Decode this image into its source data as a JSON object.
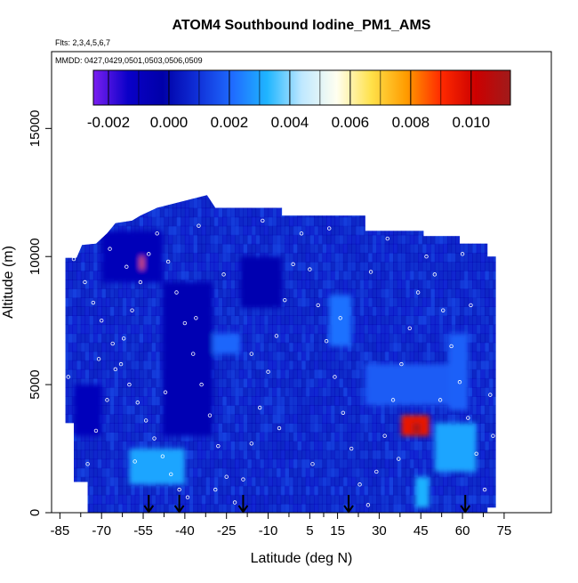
{
  "chart_data": {
    "type": "heatmap",
    "title": "ATOM4 Southbound Iodine_PM1_AMS",
    "flights_note": "Flts: 2,3,4,5,6,7",
    "dates_note": "MMDD: 0427,0429,0501,0503,0506,0509",
    "xlabel": "Latitude (deg N)",
    "ylabel": "Altitude (m)",
    "xlim": [
      -88,
      92
    ],
    "ylim": [
      0,
      18000
    ],
    "x_ticks": [
      -85,
      -70,
      -55,
      -40,
      -25,
      -10,
      5,
      15,
      30,
      45,
      60,
      75
    ],
    "y_ticks": [
      0,
      5000,
      10000,
      15000
    ],
    "colorbar": {
      "vmin": -0.0025,
      "vmax": 0.0113,
      "ticks": [
        -0.002,
        0.0,
        0.002,
        0.004,
        0.006,
        0.008,
        0.01
      ],
      "tick_labels": [
        "-0.002",
        "0.000",
        "0.002",
        "0.004",
        "0.006",
        "0.008",
        "0.010"
      ],
      "colors": [
        "#7a1ff0",
        "#0a00c8",
        "#0000a8",
        "#1030d8",
        "#1f6bff",
        "#1fb5ff",
        "#bfe8ff",
        "#fffff0",
        "#ffe14a",
        "#ff9c00",
        "#ff2a00",
        "#cc0000",
        "#a01b1b"
      ]
    },
    "background_color": "#1d55e6",
    "coverage_envelope": {
      "lat": [
        -83,
        -83,
        -79,
        -77,
        -72,
        -68,
        -65,
        -59,
        -56,
        -50,
        -32,
        -29,
        -5,
        -5,
        25,
        25,
        46,
        46,
        59,
        59,
        69,
        69,
        72,
        72,
        69,
        69,
        -75,
        -75,
        -80,
        -80,
        -83
      ],
      "alt": [
        3500,
        9950,
        9950,
        10450,
        10500,
        10900,
        11300,
        11400,
        11600,
        11900,
        12400,
        11900,
        11900,
        11600,
        11600,
        11000,
        11000,
        10800,
        10800,
        10500,
        10500,
        10000,
        10000,
        200,
        200,
        0,
        0,
        1200,
        1200,
        3500,
        3500
      ]
    },
    "features": [
      {
        "lat_min": -70,
        "lat_max": -48,
        "alt_min": 9000,
        "alt_max": 11000,
        "value": -0.0008
      },
      {
        "lat_min": -48,
        "lat_max": -30,
        "alt_min": 3000,
        "alt_max": 9000,
        "value": -0.0006
      },
      {
        "lat_min": -80,
        "lat_max": -70,
        "alt_min": 3000,
        "alt_max": 5000,
        "value": -0.0009
      },
      {
        "lat_min": -20,
        "lat_max": -5,
        "alt_min": 8000,
        "alt_max": 10000,
        "value": -0.0005
      },
      {
        "lat_min": -30,
        "lat_max": -20,
        "alt_min": 6200,
        "alt_max": 7000,
        "value": 0.002
      },
      {
        "lat_min": 12,
        "lat_max": 20,
        "alt_min": 6500,
        "alt_max": 8500,
        "value": 0.0022
      },
      {
        "lat_min": 25,
        "lat_max": 55,
        "alt_min": 4200,
        "alt_max": 5800,
        "value": 0.0018
      },
      {
        "lat_min": 55,
        "lat_max": 62,
        "alt_min": 4000,
        "alt_max": 7000,
        "value": 0.0019
      },
      {
        "lat_min": -60,
        "lat_max": -40,
        "alt_min": 1100,
        "alt_max": 2500,
        "value": 0.003
      },
      {
        "lat_min": 50,
        "lat_max": 65,
        "alt_min": 1600,
        "alt_max": 3500,
        "value": 0.003
      },
      {
        "lat_min": 43,
        "lat_max": 48,
        "alt_min": 200,
        "alt_max": 1400,
        "value": 0.0032
      },
      {
        "lat_min": 38,
        "lat_max": 48,
        "alt_min": 3000,
        "alt_max": 3800,
        "value": 0.0095
      },
      {
        "lat_min": 42,
        "lat_max": 45,
        "alt_min": 3100,
        "alt_max": 3500,
        "value": 0.011
      },
      {
        "lat_min": -56,
        "lat_max": -55,
        "alt_min": 9500,
        "alt_max": 10000,
        "value": 0.0085
      }
    ],
    "arrows_lat": [
      -53,
      -42,
      -19,
      19,
      61
    ],
    "sample_points": [
      [
        -80,
        9900
      ],
      [
        -76,
        9000
      ],
      [
        -73,
        8200
      ],
      [
        -70,
        7500
      ],
      [
        -66,
        6600
      ],
      [
        -63,
        5800
      ],
      [
        -60,
        5000
      ],
      [
        -57,
        4300
      ],
      [
        -54,
        3600
      ],
      [
        -51,
        2900
      ],
      [
        -48,
        2200
      ],
      [
        -45,
        1500
      ],
      [
        -42,
        900
      ],
      [
        -39,
        600
      ],
      [
        -77,
        500
      ],
      [
        -75,
        1900
      ],
      [
        -72,
        3200
      ],
      [
        -68,
        4400
      ],
      [
        -65,
        5600
      ],
      [
        -62,
        6800
      ],
      [
        -59,
        7900
      ],
      [
        -56,
        9000
      ],
      [
        -53,
        10100
      ],
      [
        -50,
        10900
      ],
      [
        -46,
        9800
      ],
      [
        -43,
        8600
      ],
      [
        -40,
        7400
      ],
      [
        -37,
        6200
      ],
      [
        -34,
        5000
      ],
      [
        -31,
        3800
      ],
      [
        -28,
        2600
      ],
      [
        -25,
        1400
      ],
      [
        -22,
        400
      ],
      [
        -19,
        1300
      ],
      [
        -16,
        2700
      ],
      [
        -13,
        4100
      ],
      [
        -10,
        5500
      ],
      [
        -7,
        6900
      ],
      [
        -4,
        8300
      ],
      [
        -1,
        9700
      ],
      [
        2,
        10900
      ],
      [
        5,
        9500
      ],
      [
        8,
        8100
      ],
      [
        11,
        6700
      ],
      [
        14,
        5300
      ],
      [
        17,
        3900
      ],
      [
        20,
        2500
      ],
      [
        23,
        1100
      ],
      [
        26,
        300
      ],
      [
        29,
        1600
      ],
      [
        32,
        3000
      ],
      [
        35,
        4400
      ],
      [
        38,
        5800
      ],
      [
        41,
        7200
      ],
      [
        44,
        8600
      ],
      [
        47,
        10000
      ],
      [
        50,
        9300
      ],
      [
        53,
        7900
      ],
      [
        56,
        6500
      ],
      [
        59,
        5100
      ],
      [
        62,
        3700
      ],
      [
        65,
        2300
      ],
      [
        68,
        900
      ],
      [
        70,
        4600
      ],
      [
        -82,
        5300
      ],
      [
        -81,
        2200
      ],
      [
        -67,
        10300
      ],
      [
        -35,
        11200
      ],
      [
        -12,
        11400
      ],
      [
        12,
        11100
      ],
      [
        33,
        10700
      ],
      [
        60,
        10100
      ],
      [
        -58,
        2000
      ],
      [
        -47,
        4700
      ],
      [
        -36,
        7600
      ],
      [
        -26,
        9300
      ],
      [
        -16,
        6200
      ],
      [
        -6,
        3300
      ],
      [
        6,
        1900
      ],
      [
        16,
        7600
      ],
      [
        27,
        9400
      ],
      [
        37,
        2100
      ],
      [
        52,
        4400
      ],
      [
        63,
        8100
      ],
      [
        71,
        3000
      ],
      [
        -71,
        6000
      ],
      [
        -61,
        9600
      ],
      [
        -29,
        900
      ]
    ]
  }
}
